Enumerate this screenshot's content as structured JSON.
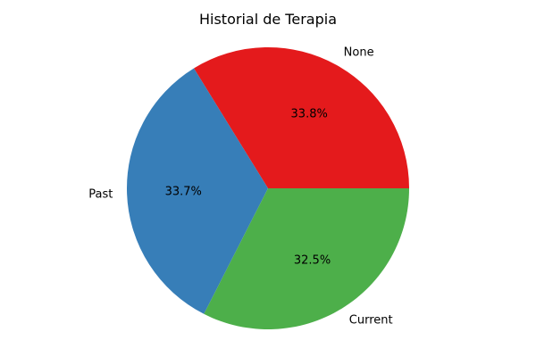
{
  "chart_data": {
    "type": "pie",
    "title": "Historial de Terapia",
    "categories": [
      "None",
      "Past",
      "Current"
    ],
    "values": [
      33.8,
      33.7,
      32.5
    ],
    "percent_labels": [
      "33.8%",
      "33.7%",
      "32.5%"
    ],
    "colors": [
      "#e41a1c",
      "#377eb8",
      "#4daf4a"
    ],
    "start_angle_deg": 0,
    "direction": "counterclockwise",
    "legend": "none"
  }
}
